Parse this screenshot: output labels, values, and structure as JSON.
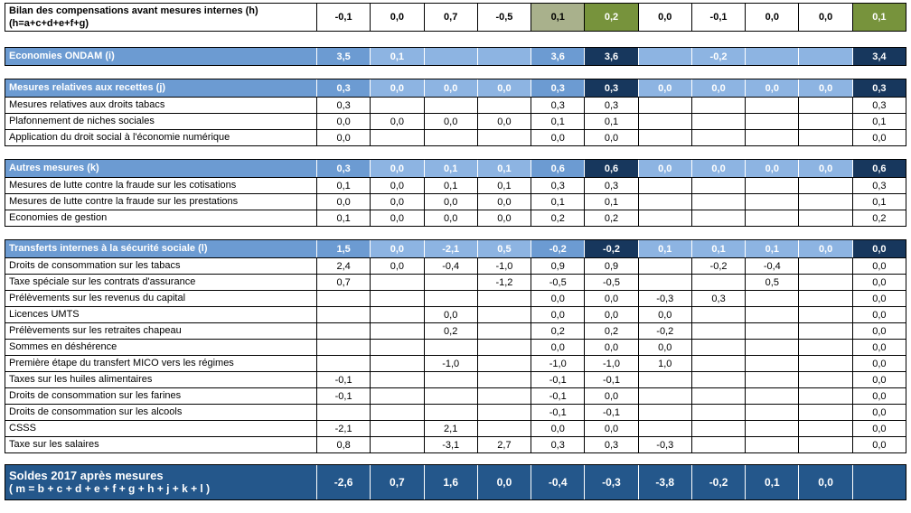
{
  "colors": {
    "header_blue": "#6C9BD2",
    "light_blue": "#8DB4E2",
    "navy": "#17375D",
    "footer_blue": "#24578B",
    "olive_green": "#77933C",
    "sage_green": "#A9B18C"
  },
  "header_row": {
    "label_line1": "Bilan des compensations avant mesures internes (h)",
    "label_line2": "(h=a+c+d+e+f+g)",
    "values": [
      "-0,1",
      "0,0",
      "0,7",
      "-0,5",
      "0,1",
      "0,2",
      "0,0",
      "-0,1",
      "0,0",
      "0,0",
      "0,1"
    ],
    "highlights": {
      "4": "sage",
      "5": "olive",
      "10": "olive"
    }
  },
  "ondam_row": {
    "label": "Economies ONDAM (i)",
    "values": [
      "3,5",
      "0,1",
      "",
      "",
      "3,6",
      "3,6",
      "",
      "-0,2",
      "",
      "",
      "3,4"
    ]
  },
  "sections": [
    {
      "header": {
        "label": "Mesures relatives aux recettes (j)",
        "values": [
          "0,3",
          "0,0",
          "0,0",
          "0,0",
          "0,3",
          "0,3",
          "0,0",
          "0,0",
          "0,0",
          "0,0",
          "0,3"
        ]
      },
      "rows": [
        {
          "label": "Mesures relatives aux droits tabacs",
          "values": [
            "0,3",
            "",
            "",
            "",
            "0,3",
            "0,3",
            "",
            "",
            "",
            "",
            "0,3"
          ]
        },
        {
          "label": "Plafonnement de niches sociales",
          "values": [
            "0,0",
            "0,0",
            "0,0",
            "0,0",
            "0,1",
            "0,1",
            "",
            "",
            "",
            "",
            "0,1"
          ]
        },
        {
          "label": "Application du droit social à l'économie numérique",
          "values": [
            "0,0",
            "",
            "",
            "",
            "0,0",
            "0,0",
            "",
            "",
            "",
            "",
            "0,0"
          ]
        }
      ]
    },
    {
      "header": {
        "label": "Autres mesures (k)",
        "values": [
          "0,3",
          "0,0",
          "0,1",
          "0,1",
          "0,6",
          "0,6",
          "0,0",
          "0,0",
          "0,0",
          "0,0",
          "0,6"
        ]
      },
      "rows": [
        {
          "label": "Mesures de lutte contre la fraude sur les cotisations",
          "values": [
            "0,1",
            "0,0",
            "0,1",
            "0,1",
            "0,3",
            "0,3",
            "",
            "",
            "",
            "",
            "0,3"
          ]
        },
        {
          "label": "Mesures de lutte contre la fraude sur les prestations",
          "values": [
            "0,0",
            "0,0",
            "0,0",
            "0,0",
            "0,1",
            "0,1",
            "",
            "",
            "",
            "",
            "0,1"
          ]
        },
        {
          "label": "Economies de gestion",
          "values": [
            "0,1",
            "0,0",
            "0,0",
            "0,0",
            "0,2",
            "0,2",
            "",
            "",
            "",
            "",
            "0,2"
          ]
        }
      ]
    },
    {
      "header": {
        "label": "Transferts internes à la sécurité sociale (l)",
        "values": [
          "1,5",
          "0,0",
          "-2,1",
          "0,5",
          "-0,2",
          "-0,2",
          "0,1",
          "0,1",
          "0,1",
          "0,0",
          "0,0"
        ]
      },
      "rows": [
        {
          "label": "Droits de consommation sur les tabacs",
          "values": [
            "2,4",
            "0,0",
            "-0,4",
            "-1,0",
            "0,9",
            "0,9",
            "",
            "-0,2",
            "-0,4",
            "",
            "0,0"
          ]
        },
        {
          "label": "Taxe spéciale sur les contrats d'assurance",
          "values": [
            "0,7",
            "",
            "",
            "-1,2",
            "-0,5",
            "-0,5",
            "",
            "",
            "0,5",
            "",
            "0,0"
          ]
        },
        {
          "label": "Prélèvements sur les revenus du capital",
          "values": [
            "",
            "",
            "",
            "",
            "0,0",
            "0,0",
            "-0,3",
            "0,3",
            "",
            "",
            "0,0"
          ]
        },
        {
          "label": "Licences UMTS",
          "values": [
            "",
            "",
            "0,0",
            "",
            "0,0",
            "0,0",
            "0,0",
            "",
            "",
            "",
            "0,0"
          ]
        },
        {
          "label": "Prélèvements sur les retraites chapeau",
          "values": [
            "",
            "",
            "0,2",
            "",
            "0,2",
            "0,2",
            "-0,2",
            "",
            "",
            "",
            "0,0"
          ]
        },
        {
          "label": "Sommes en déshérence",
          "values": [
            "",
            "",
            "",
            "",
            "0,0",
            "0,0",
            "0,0",
            "",
            "",
            "",
            "0,0"
          ]
        },
        {
          "label": "Première étape du transfert MICO vers les régimes",
          "values": [
            "",
            "",
            "-1,0",
            "",
            "-1,0",
            "-1,0",
            "1,0",
            "",
            "",
            "",
            "0,0"
          ]
        },
        {
          "label": "Taxes sur les huiles alimentaires",
          "values": [
            "-0,1",
            "",
            "",
            "",
            "-0,1",
            "-0,1",
            "",
            "",
            "",
            "",
            "0,0"
          ]
        },
        {
          "label": "Droits de consommation sur les farines",
          "values": [
            "-0,1",
            "",
            "",
            "",
            "-0,1",
            "0,0",
            "",
            "",
            "",
            "",
            "0,0"
          ]
        },
        {
          "label": "Droits de consommation sur les alcools",
          "values": [
            "",
            "",
            "",
            "",
            "-0,1",
            "-0,1",
            "",
            "",
            "",
            "",
            "0,0"
          ]
        },
        {
          "label": "CSSS",
          "values": [
            "-2,1",
            "",
            "2,1",
            "",
            "0,0",
            "0,0",
            "",
            "",
            "",
            "",
            "0,0"
          ]
        },
        {
          "label": "Taxe sur les salaires",
          "values": [
            "0,8",
            "",
            "-3,1",
            "2,7",
            "0,3",
            "0,3",
            "-0,3",
            "",
            "",
            "",
            "0,0"
          ]
        }
      ]
    }
  ],
  "footer_row": {
    "label_line1": "Soldes 2017 après mesures",
    "label_line2": "( m =  b + c + d + e + f + g + h + j + k + l )",
    "values": [
      "-2,6",
      "0,7",
      "1,6",
      "0,0",
      "-0,4",
      "-0,3",
      "-3,8",
      "-0,2",
      "0,1",
      "0,0",
      ""
    ]
  }
}
